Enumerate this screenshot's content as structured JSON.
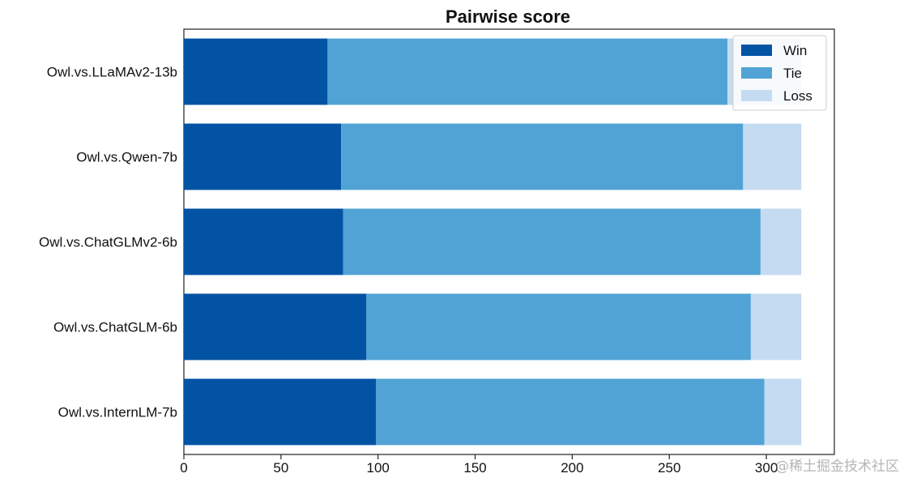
{
  "watermark": "@稀土掘金技术社区",
  "chart_data": {
    "type": "bar",
    "orientation": "horizontal",
    "stacked": true,
    "title": "Pairwise score",
    "xlabel": "",
    "ylabel": "",
    "categories": [
      "Owl.vs.LLaMAv2-13b",
      "Owl.vs.Qwen-7b",
      "Owl.vs.ChatGLMv2-6b",
      "Owl.vs.ChatGLM-6b",
      "Owl.vs.InternLM-7b"
    ],
    "series": [
      {
        "name": "Win",
        "color": "#0353a4",
        "values": [
          74,
          81,
          82,
          94,
          99
        ]
      },
      {
        "name": "Tie",
        "color": "#51a3d5",
        "values": [
          206,
          207,
          215,
          198,
          200
        ]
      },
      {
        "name": "Loss",
        "color": "#c5dbf1",
        "values": [
          38,
          30,
          21,
          26,
          19
        ]
      }
    ],
    "xlim": [
      0,
      335
    ],
    "xticks": [
      0,
      50,
      100,
      150,
      200,
      250,
      300
    ],
    "grid": false,
    "legend_position": "top-right"
  }
}
